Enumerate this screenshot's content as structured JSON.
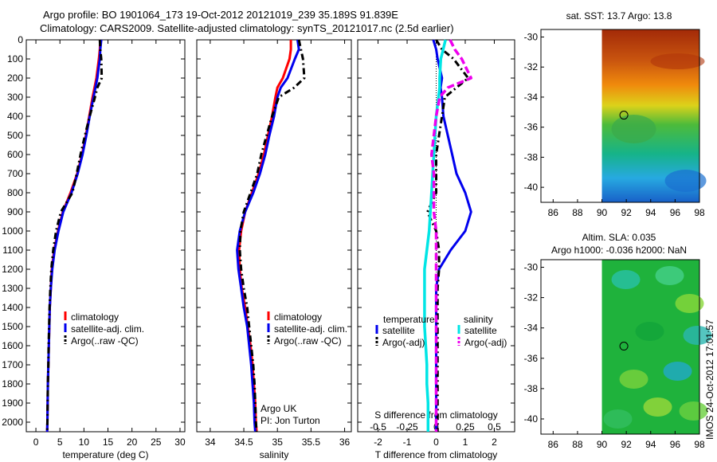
{
  "titles": {
    "line1": "Argo profile: BO 1901064_173 19-Oct-2012 20121019_239 35.189S 91.839E",
    "line2": "Climatology: CARS2009. Satellite-adjusted climatology: synTS_20121017.nc (2.5d earlier)"
  },
  "footer_stamp": "IMOS 24-Oct-2012 17:01:57",
  "colors": {
    "climatology": "#ff0000",
    "satellite": "#0000ee",
    "argo": "#000000",
    "sat_salinity": "#00e5e5",
    "argo_salinity": "#ee00ee"
  },
  "chart_data": [
    {
      "type": "line",
      "panel": "temperature",
      "xlabel": "temperature (deg C)",
      "ylabel": "",
      "xlim": [
        -2,
        31
      ],
      "ylim": [
        2050,
        0
      ],
      "xticks": [
        "0",
        "5",
        "10",
        "15",
        "20",
        "25",
        "30"
      ],
      "yticks": [
        "0",
        "100",
        "200",
        "300",
        "400",
        "500",
        "600",
        "700",
        "800",
        "900",
        "1000",
        "1100",
        "1200",
        "1300",
        "1400",
        "1500",
        "1600",
        "1700",
        "1800",
        "1900",
        "2000"
      ],
      "depth": [
        0,
        50,
        100,
        200,
        250,
        300,
        400,
        500,
        600,
        700,
        800,
        900,
        1000,
        1100,
        1200,
        1300,
        1400,
        1500,
        1600,
        1700,
        1800,
        1900,
        2000,
        2050
      ],
      "series": [
        {
          "name": "climatology",
          "values": [
            13.4,
            13.3,
            13.1,
            12.6,
            12.2,
            11.8,
            11.1,
            10.4,
            9.6,
            8.6,
            7.2,
            5.6,
            4.6,
            3.8,
            3.3,
            3.1,
            2.9,
            2.8,
            2.7,
            2.6,
            2.5,
            2.45,
            2.4,
            2.35
          ]
        },
        {
          "name": "satellite-adj. clim.",
          "values": [
            13.6,
            13.4,
            13.3,
            12.8,
            12.4,
            12.0,
            11.2,
            10.5,
            9.7,
            8.7,
            7.4,
            5.7,
            4.7,
            3.9,
            3.4,
            3.1,
            2.9,
            2.8,
            2.7,
            2.6,
            2.5,
            2.45,
            2.4,
            2.35
          ]
        },
        {
          "name": "Argo(..raw -QC)",
          "values": [
            13.3,
            13.4,
            13.6,
            13.7,
            12.8,
            12.3,
            11.2,
            10.2,
            9.3,
            8.5,
            7.6,
            5.2,
            4.2,
            3.6,
            3.2,
            3.0,
            2.85,
            2.75,
            2.65,
            2.6,
            2.5,
            2.45,
            2.4,
            2.35
          ]
        }
      ],
      "legend": [
        "climatology",
        "satellite-adj. clim.",
        "Argo(..raw -QC)"
      ]
    },
    {
      "type": "line",
      "panel": "salinity",
      "xlabel": "salinity",
      "ylabel": "",
      "xlim": [
        33.8,
        36.1
      ],
      "ylim": [
        2050,
        0
      ],
      "xticks": [
        "34",
        "34.5",
        "35",
        "35.5",
        "36"
      ],
      "depth": [
        0,
        50,
        100,
        200,
        250,
        300,
        400,
        500,
        600,
        700,
        800,
        900,
        1000,
        1100,
        1200,
        1300,
        1400,
        1500,
        1600,
        1700,
        1800,
        1900,
        2000,
        2050
      ],
      "series": [
        {
          "name": "climatology",
          "values": [
            35.2,
            35.2,
            35.18,
            35.08,
            35.0,
            34.97,
            34.92,
            34.86,
            34.8,
            34.72,
            34.62,
            34.52,
            34.46,
            34.43,
            34.44,
            34.47,
            34.52,
            34.56,
            34.6,
            34.63,
            34.65,
            34.67,
            34.68,
            34.69
          ]
        },
        {
          "name": "satellite-adj. clim.",
          "values": [
            35.3,
            35.32,
            35.26,
            35.15,
            35.05,
            35.0,
            34.95,
            34.88,
            34.82,
            34.74,
            34.64,
            34.52,
            34.44,
            34.4,
            34.42,
            34.46,
            34.5,
            34.55,
            34.58,
            34.61,
            34.63,
            34.65,
            34.66,
            34.67
          ]
        },
        {
          "name": "Argo(..raw -QC)",
          "values": [
            35.32,
            35.35,
            35.38,
            35.4,
            35.25,
            35.02,
            34.92,
            34.84,
            34.76,
            34.7,
            34.6,
            34.5,
            34.45,
            34.44,
            34.46,
            34.5,
            34.55,
            34.58,
            34.61,
            34.64,
            34.66,
            34.67,
            34.68,
            34.69
          ]
        }
      ],
      "legend": [
        "climatology",
        "satellite-adj. clim.",
        "Argo(..raw -QC)"
      ],
      "annotation": [
        "Argo UK",
        "PI: Jon Turton"
      ]
    },
    {
      "type": "line",
      "panel": "difference",
      "xlabel": "T difference from climatology",
      "xlabel_top": "S difference from climatology",
      "xlim": [
        -2.7,
        2.7
      ],
      "ylim": [
        2050,
        0
      ],
      "xticks": [
        "-2",
        "-1",
        "0",
        "1",
        "2"
      ],
      "xticks_top": [
        "-0.5",
        "-0.25",
        "0",
        "0.25",
        "0.5"
      ],
      "depth": [
        0,
        50,
        100,
        200,
        250,
        300,
        400,
        500,
        600,
        700,
        800,
        900,
        1000,
        1100,
        1200,
        1300,
        1400,
        1500,
        1600,
        1700,
        1800,
        1900,
        2000,
        2050
      ],
      "series": [
        {
          "name": "temperature satellite",
          "values": [
            -0.1,
            0.0,
            0.05,
            0.2,
            0.15,
            0.2,
            0.25,
            0.4,
            0.55,
            0.7,
            1.0,
            1.2,
            1.0,
            0.5,
            0.1,
            0.0,
            0.0,
            0.0,
            0.0,
            0.0,
            0.0,
            0.0,
            0.0,
            0.0
          ]
        },
        {
          "name": "temperature Argo(-adj)",
          "values": [
            0.0,
            0.2,
            0.6,
            1.1,
            0.7,
            0.3,
            0.2,
            0.1,
            0.0,
            0.0,
            0.0,
            -0.3,
            0.0,
            0.1,
            0.1,
            0.05,
            0.05,
            0.05,
            0.05,
            0.05,
            0.05,
            0.05,
            0.05,
            0.05
          ]
        },
        {
          "name": "salinity satellite",
          "values": [
            0.08,
            0.06,
            0.04,
            0.03,
            0.03,
            0.02,
            0.0,
            -0.01,
            -0.02,
            -0.03,
            -0.04,
            -0.05,
            -0.06,
            -0.08,
            -0.1,
            -0.1,
            -0.1,
            -0.1,
            -0.09,
            -0.08,
            -0.08,
            -0.07,
            -0.07,
            -0.07
          ]
        },
        {
          "name": "salinity Argo(-adj)",
          "values": [
            0.12,
            0.16,
            0.22,
            0.3,
            0.1,
            0.03,
            0.0,
            -0.02,
            -0.04,
            -0.02,
            -0.02,
            -0.02,
            0.0,
            0.0,
            0.0,
            0.0,
            0.0,
            0.0,
            0.0,
            0.0,
            0.0,
            0.0,
            0.0,
            0.0
          ]
        }
      ],
      "legend_groups": [
        "temperature",
        "salinity"
      ],
      "legend": [
        "satellite",
        "Argo(-adj)",
        "satellite",
        "Argo(-adj)"
      ]
    },
    {
      "type": "heatmap",
      "panel": "sst",
      "title": "sat. SST: 13.7 Argo: 13.8",
      "xlim": [
        85,
        98
      ],
      "ylim": [
        -41,
        -29.5
      ],
      "xticks": [
        "86",
        "88",
        "90",
        "92",
        "94",
        "96",
        "98"
      ],
      "yticks": [
        "-30",
        "-32",
        "-34",
        "-36",
        "-38",
        "-40"
      ],
      "data_xlim": [
        90,
        98
      ],
      "float_position": [
        91.8,
        -35.2
      ]
    },
    {
      "type": "heatmap",
      "panel": "sla",
      "title": "Altim. SLA: 0.035",
      "subtitle": "Argo h1000: -0.036 h2000: NaN",
      "xlim": [
        85,
        98
      ],
      "ylim": [
        -41,
        -29.5
      ],
      "xticks": [
        "86",
        "88",
        "90",
        "92",
        "94",
        "96",
        "98"
      ],
      "yticks": [
        "-30",
        "-32",
        "-34",
        "-36",
        "-38",
        "-40"
      ],
      "data_xlim": [
        90,
        98
      ],
      "float_position": [
        91.8,
        -35.2
      ]
    }
  ]
}
